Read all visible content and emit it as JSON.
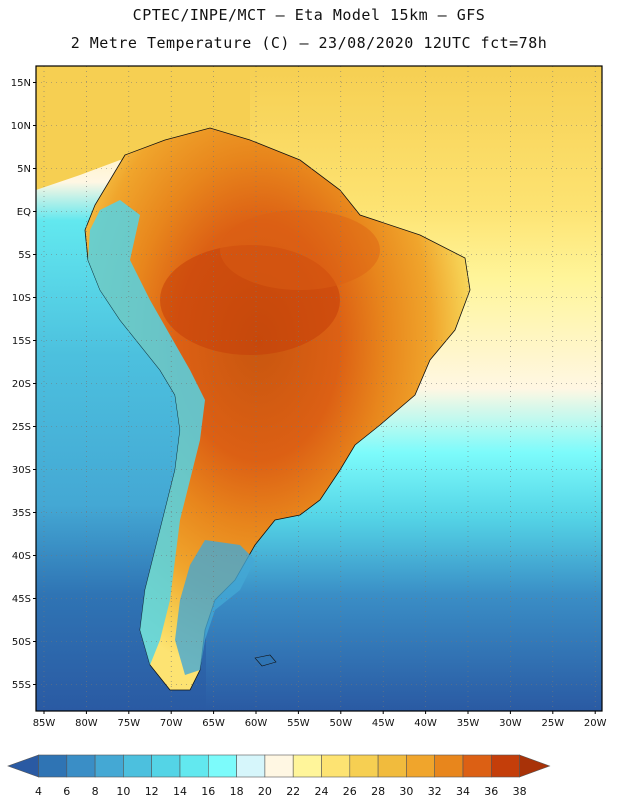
{
  "title": {
    "line1": "CPTEC/INPE/MCT –  Eta Model 15km – GFS",
    "line2": "2 Metre Temperature (C) – 23/08/2020 12UTC fct=78h"
  },
  "axes": {
    "lat_labels": [
      "15N",
      "10N",
      "5N",
      "EQ",
      "5S",
      "10S",
      "15S",
      "20S",
      "25S",
      "30S",
      "35S",
      "40S",
      "45S",
      "50S",
      "55S"
    ],
    "lon_labels": [
      "85W",
      "80W",
      "75W",
      "70W",
      "65W",
      "60W",
      "55W",
      "50W",
      "45W",
      "40W",
      "35W",
      "30W",
      "25W",
      "20W"
    ]
  },
  "colorbar": {
    "ticks": [
      "4",
      "6",
      "8",
      "10",
      "12",
      "14",
      "16",
      "18",
      "20",
      "22",
      "24",
      "26",
      "28",
      "30",
      "32",
      "34",
      "36",
      "38"
    ],
    "colors": [
      "#2a5aa3",
      "#2f74b4",
      "#3a8ec6",
      "#44a8d4",
      "#4cc0de",
      "#54d4e6",
      "#62e8ef",
      "#7cfbfb",
      "#d6f6fb",
      "#fff7e3",
      "#fff59a",
      "#fde372",
      "#f6cf52",
      "#f1bb3d",
      "#f0a52c",
      "#e8861c",
      "#dc6014",
      "#c43e0a",
      "#a83208"
    ]
  },
  "map": {
    "ocean_warm": "#fde372",
    "ocean_mid": "#fff7e3",
    "ocean_cool": "#62e8ef",
    "ocean_cold": "#2f74b4",
    "land_hot": "#c8560f",
    "andes": "#4cc0de"
  }
}
